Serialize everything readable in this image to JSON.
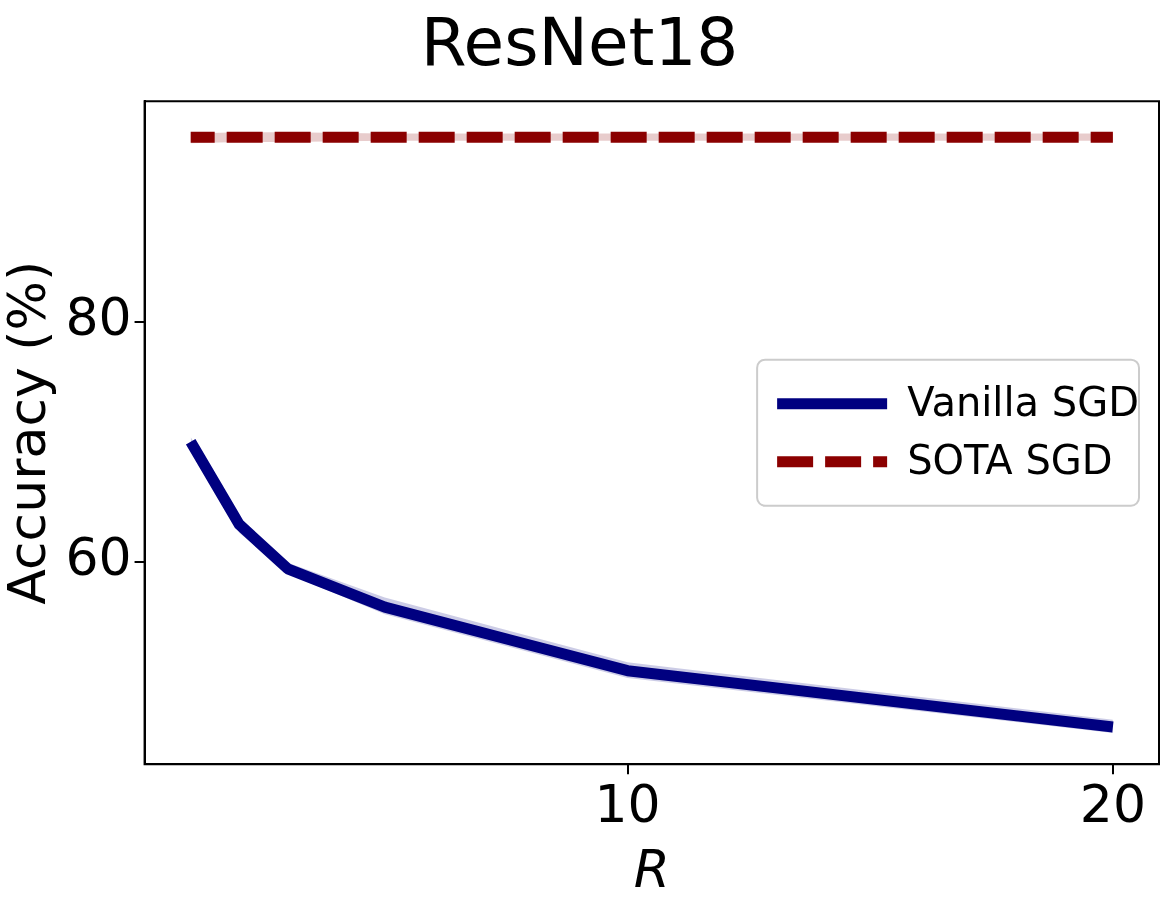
{
  "chart_data": {
    "type": "line",
    "title": "ResNet18",
    "xlabel": "R",
    "ylabel": "Accuracy (%)",
    "xlim": [
      0.05,
      20.95
    ],
    "ylim": [
      43.1,
      98.4
    ],
    "xticks": [
      10,
      20
    ],
    "yticks": [
      60,
      80
    ],
    "grid": false,
    "legend": "center right",
    "marker": "none",
    "series": [
      {
        "name": "Vanilla SGD",
        "color": "#000080",
        "line_style": "solid",
        "x": [
          1,
          2,
          3,
          5,
          10,
          20
        ],
        "values": [
          70.0,
          63.1,
          59.4,
          56.2,
          50.9,
          46.2
        ],
        "lower": [
          69.6,
          62.4,
          59.0,
          55.6,
          50.3,
          45.7
        ],
        "upper": [
          70.4,
          63.6,
          59.9,
          57.0,
          51.6,
          46.8
        ]
      },
      {
        "name": "SOTA SGD",
        "color": "#8b0000",
        "line_style": "dashed",
        "x": [
          1,
          2,
          3,
          5,
          10,
          20
        ],
        "values": [
          95.4,
          95.4,
          95.4,
          95.4,
          95.4,
          95.4
        ],
        "lower": [
          94.9,
          95.0,
          95.0,
          95.1,
          95.1,
          95.1
        ],
        "upper": [
          95.7,
          95.8,
          95.8,
          95.7,
          95.7,
          95.7
        ]
      }
    ]
  }
}
